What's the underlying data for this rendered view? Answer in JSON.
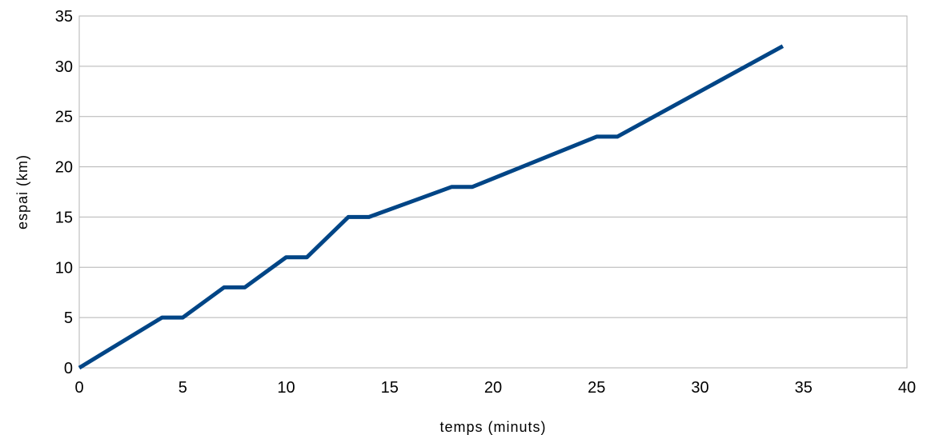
{
  "chart_data": {
    "type": "line",
    "title": "",
    "xlabel": "temps (minuts)",
    "ylabel": "espai (km)",
    "xlim": [
      0,
      40
    ],
    "ylim": [
      0,
      35
    ],
    "x_ticks": [
      0,
      5,
      10,
      15,
      20,
      25,
      30,
      35,
      40
    ],
    "y_ticks": [
      0,
      5,
      10,
      15,
      20,
      25,
      30,
      35
    ],
    "grid": "horizontal",
    "legend": "none",
    "series": [
      {
        "color": "#004586",
        "x": [
          0,
          4,
          5,
          7,
          8,
          10,
          11,
          13,
          14,
          18,
          19,
          25,
          26,
          34
        ],
        "y": [
          0,
          5,
          5,
          8,
          8,
          11,
          11,
          15,
          15,
          18,
          18,
          23,
          23,
          32
        ]
      }
    ]
  }
}
